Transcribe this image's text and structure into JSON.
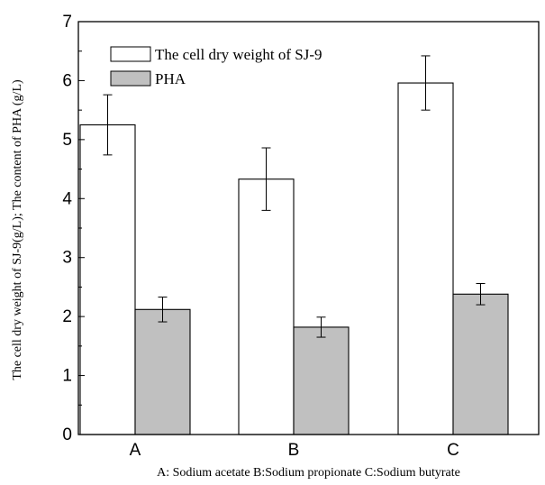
{
  "chart_data": {
    "type": "bar",
    "categories": [
      "A",
      "B",
      "C"
    ],
    "series": [
      {
        "name": "The cell dry weight of SJ-9",
        "values": [
          5.25,
          4.33,
          5.96
        ],
        "errors": [
          0.51,
          0.53,
          0.46
        ],
        "color": "#ffffff"
      },
      {
        "name": "PHA",
        "values": [
          2.12,
          1.82,
          2.38
        ],
        "errors": [
          0.21,
          0.17,
          0.18
        ],
        "color": "#c0c0c0"
      }
    ],
    "xlabel": "A: Sodium acetate B:Sodium propionate C:Sodium butyrate",
    "ylabel": "The cell dry weight of SJ-9(g/L); The content of PHA (g/L)",
    "ylim": [
      0,
      7
    ],
    "yticks": [
      "0",
      "1",
      "2",
      "3",
      "4",
      "5",
      "6",
      "7"
    ],
    "grid": false,
    "legend_position": "top-left"
  }
}
